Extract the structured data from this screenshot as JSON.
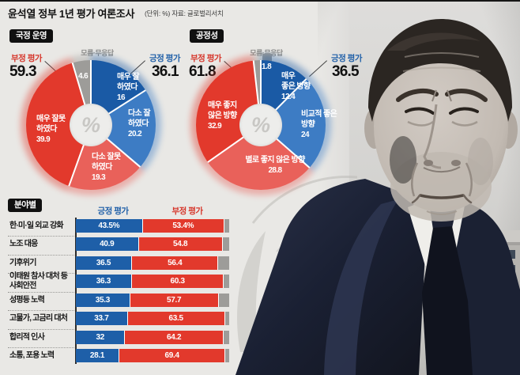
{
  "title": "윤석열 정부 1년 평가 여론조사",
  "subtitle": "(단위: %)  자료: 글로벌리서치",
  "colors": {
    "positive": "#1e5fa8",
    "positive_light": "#3d7cc4",
    "negative": "#e2392c",
    "negative_light": "#e9615a",
    "no_answer": "#9d9c99",
    "background": "#e9e8e5"
  },
  "chart_data": [
    {
      "type": "pie",
      "variant": "donut",
      "title": "국정 운영",
      "center_symbol": "%",
      "negative": {
        "label": "부정 평가",
        "value": 59.3
      },
      "positive": {
        "label": "긍정 평가",
        "value": 36.1
      },
      "unknown": {
        "label": "모름·무응답",
        "value": 4.6
      },
      "segments": [
        {
          "label": "매우 잘 하였다",
          "value": 16,
          "color": "#1a5aa5",
          "lines": [
            "매우 잘",
            "하였다",
            "16"
          ]
        },
        {
          "label": "다소 잘 하였다",
          "value": 20.2,
          "color": "#3d7cc4",
          "lines": [
            "다소 잘",
            "하였다",
            "20.2"
          ]
        },
        {
          "label": "다소 잘못 하였다",
          "value": 19.3,
          "color": "#e9615a",
          "lines": [
            "다소 잘못",
            "하였다",
            "19.3"
          ]
        },
        {
          "label": "매우 잘못 하였다",
          "value": 39.9,
          "color": "#e2392c",
          "lines": [
            "매우 잘못",
            "하였다",
            "39.9"
          ]
        },
        {
          "label": "모름·무응답",
          "value": 4.6,
          "color": "#9d9c99",
          "lines": [
            "4.6"
          ]
        }
      ]
    },
    {
      "type": "pie",
      "variant": "donut",
      "title": "공정성",
      "center_symbol": "%",
      "negative": {
        "label": "부정 평가",
        "value": 61.8
      },
      "positive": {
        "label": "긍정 평가",
        "value": 36.5
      },
      "unknown": {
        "label": "모름·무응답",
        "value": 1.8
      },
      "segments": [
        {
          "label": "매우 좋은 방향",
          "value": 12.4,
          "color": "#1a5aa5",
          "lines": [
            "매우",
            "좋은 방향",
            "12.4"
          ]
        },
        {
          "label": "비교적 좋은 방향",
          "value": 24,
          "color": "#3d7cc4",
          "lines": [
            "비교적 좋은",
            "방향",
            "24"
          ]
        },
        {
          "label": "별로 좋지 않은 방향",
          "value": 28.8,
          "color": "#e9615a",
          "lines": [
            "별로 좋지 않은 방향",
            "28.8"
          ]
        },
        {
          "label": "매우 좋지 않은 방향",
          "value": 32.9,
          "color": "#e2392c",
          "lines": [
            "매우 좋지",
            "않은 방향",
            "32.9"
          ]
        },
        {
          "label": "모름·무응답",
          "value": 1.8,
          "color": "#9d9c99",
          "lines": [
            "1.8"
          ]
        }
      ]
    },
    {
      "type": "bar",
      "title": "분야별",
      "orientation": "horizontal-stacked",
      "xlim": [
        0,
        100
      ],
      "legend": [
        "긍정 평가",
        "부정 평가"
      ],
      "categories": [
        "한·미·일 외교 강화",
        "노조 대응",
        "기후위기",
        "이태원 참사 대처 등 사회안전",
        "성평등 노력",
        "고물가, 고금리 대처",
        "합리적 인사",
        "소통, 포용 노력"
      ],
      "label_lines": [
        [
          "한·미·일 외교 강화"
        ],
        [
          "노조 대응"
        ],
        [
          "기후위기"
        ],
        [
          "이태원 참사 대처 등",
          "사회안전"
        ],
        [
          "성평등 노력"
        ],
        [
          "고물가, 고금리 대처"
        ],
        [
          "합리적 인사"
        ],
        [
          "소통, 포용 노력"
        ]
      ],
      "series": [
        {
          "name": "긍정 평가",
          "values": [
            43.5,
            40.9,
            36.5,
            36.3,
            35.3,
            33.7,
            32,
            28.1
          ]
        },
        {
          "name": "부정 평가",
          "values": [
            53.4,
            54.8,
            56.4,
            60.3,
            57.7,
            63.5,
            64.2,
            69.4
          ]
        }
      ],
      "pos_labels": [
        "43.5%",
        "40.9",
        "36.5",
        "36.3",
        "35.3",
        "33.7",
        "32",
        "28.1"
      ],
      "neg_labels": [
        "53.4%",
        "54.8",
        "56.4",
        "60.3",
        "57.7",
        "63.5",
        "64.2",
        "69.4"
      ]
    }
  ]
}
